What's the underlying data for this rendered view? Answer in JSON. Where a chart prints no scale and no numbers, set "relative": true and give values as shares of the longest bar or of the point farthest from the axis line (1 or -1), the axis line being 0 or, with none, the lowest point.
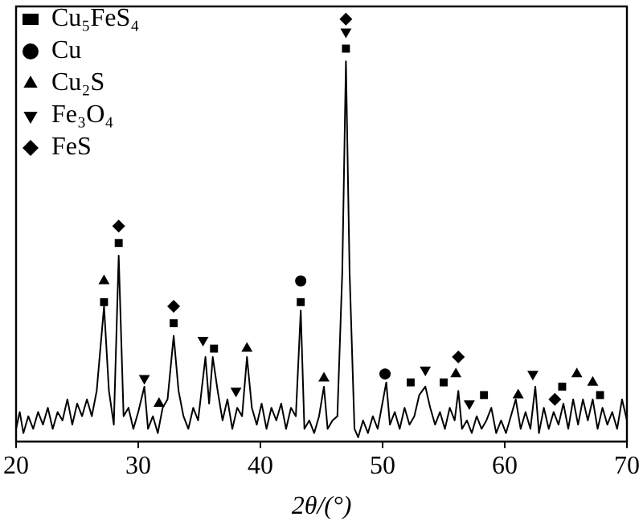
{
  "chart_data": {
    "type": "line",
    "relative": true,
    "xlabel": "2θ/(°)",
    "xlim": [
      20,
      70
    ],
    "xticks": [
      20,
      30,
      40,
      50,
      60,
      70
    ],
    "grid": false,
    "legend": "top left",
    "series": [
      {
        "type": "line",
        "color": "#000000",
        "marker": "none",
        "x": [
          20,
          20.3,
          20.6,
          21,
          21.4,
          21.8,
          22.2,
          22.6,
          23,
          23.4,
          23.8,
          24.2,
          24.6,
          25,
          25.4,
          25.8,
          26.2,
          26.6,
          27.2,
          27.6,
          28,
          28.4,
          28.8,
          29.2,
          29.6,
          30,
          30.5,
          30.8,
          31.2,
          31.6,
          32,
          32.4,
          32.9,
          33.3,
          33.7,
          34.1,
          34.5,
          34.9,
          35.5,
          35.8,
          36.1,
          36.5,
          36.9,
          37.3,
          37.7,
          38.1,
          38.5,
          38.9,
          39.3,
          39.7,
          40.1,
          40.5,
          40.9,
          41.3,
          41.7,
          42.1,
          42.5,
          42.9,
          43.3,
          43.6,
          44,
          44.4,
          44.8,
          45.2,
          45.5,
          45.9,
          46.3,
          46.7,
          47,
          47.3,
          47.7,
          48,
          48.4,
          48.8,
          49.2,
          49.6,
          50.3,
          50.6,
          51,
          51.4,
          51.8,
          52.2,
          52.6,
          53,
          53.5,
          53.9,
          54.3,
          54.7,
          55.1,
          55.5,
          55.9,
          56.2,
          56.5,
          56.9,
          57.3,
          57.7,
          58.1,
          58.5,
          58.9,
          59.3,
          59.7,
          60.1,
          60.5,
          60.9,
          61.3,
          61.7,
          62.1,
          62.5,
          62.8,
          63.2,
          63.6,
          64,
          64.4,
          64.8,
          65.2,
          65.6,
          66,
          66.4,
          66.8,
          67.2,
          67.6,
          68,
          68.4,
          68.8,
          69.2,
          69.6,
          70
        ],
        "values": [
          0.03,
          0.07,
          0.02,
          0.06,
          0.03,
          0.07,
          0.04,
          0.08,
          0.03,
          0.07,
          0.05,
          0.1,
          0.04,
          0.09,
          0.06,
          0.1,
          0.06,
          0.12,
          0.32,
          0.12,
          0.04,
          0.44,
          0.06,
          0.08,
          0.03,
          0.07,
          0.13,
          0.03,
          0.06,
          0.02,
          0.08,
          0.1,
          0.25,
          0.12,
          0.06,
          0.03,
          0.08,
          0.05,
          0.2,
          0.09,
          0.2,
          0.12,
          0.05,
          0.1,
          0.03,
          0.08,
          0.06,
          0.2,
          0.08,
          0.04,
          0.09,
          0.03,
          0.08,
          0.05,
          0.09,
          0.03,
          0.08,
          0.06,
          0.31,
          0.03,
          0.05,
          0.02,
          0.06,
          0.13,
          0.03,
          0.05,
          0.06,
          0.4,
          0.9,
          0.4,
          0.03,
          0.01,
          0.05,
          0.02,
          0.06,
          0.03,
          0.14,
          0.04,
          0.07,
          0.03,
          0.08,
          0.04,
          0.06,
          0.11,
          0.13,
          0.08,
          0.04,
          0.07,
          0.03,
          0.08,
          0.05,
          0.12,
          0.03,
          0.05,
          0.02,
          0.06,
          0.03,
          0.05,
          0.08,
          0.02,
          0.05,
          0.02,
          0.06,
          0.1,
          0.03,
          0.07,
          0.03,
          0.13,
          0.02,
          0.08,
          0.03,
          0.07,
          0.04,
          0.09,
          0.03,
          0.1,
          0.04,
          0.1,
          0.05,
          0.1,
          0.03,
          0.08,
          0.04,
          0.07,
          0.03,
          0.1,
          0.05
        ]
      },
      {
        "type": "scatter",
        "name": "Cu₅FeS₄",
        "color": "#000000",
        "marker": "square",
        "x": [
          27.2,
          28.4,
          32.9,
          36.2,
          43.3,
          47.0,
          52.3,
          55.0,
          58.3,
          64.7,
          67.8
        ],
        "values": [
          0.33,
          0.47,
          0.28,
          0.22,
          0.33,
          0.93,
          0.14,
          0.14,
          0.11,
          0.13,
          0.11
        ]
      },
      {
        "type": "scatter",
        "name": "Cu",
        "color": "#000000",
        "marker": "circle",
        "x": [
          43.3,
          50.2
        ],
        "values": [
          0.38,
          0.16
        ]
      },
      {
        "type": "scatter",
        "name": "Cu₂S",
        "color": "#000000",
        "marker": "triangle",
        "x": [
          27.2,
          31.7,
          38.9,
          45.2,
          56.0,
          61.1,
          65.9,
          67.2
        ],
        "values": [
          0.38,
          0.09,
          0.22,
          0.15,
          0.16,
          0.11,
          0.16,
          0.14
        ]
      },
      {
        "type": "scatter",
        "name": "Fe₃O₄",
        "color": "#000000",
        "marker": "triangle-down",
        "x": [
          30.5,
          35.3,
          38.0,
          47.0,
          53.5,
          57.1,
          62.3
        ],
        "values": [
          0.15,
          0.24,
          0.12,
          0.97,
          0.17,
          0.09,
          0.16
        ]
      },
      {
        "type": "scatter",
        "name": "FeS",
        "color": "#000000",
        "marker": "diamond",
        "x": [
          28.4,
          32.9,
          47.0,
          56.2,
          64.1
        ],
        "values": [
          0.51,
          0.32,
          1.0,
          0.2,
          0.1
        ]
      }
    ]
  }
}
